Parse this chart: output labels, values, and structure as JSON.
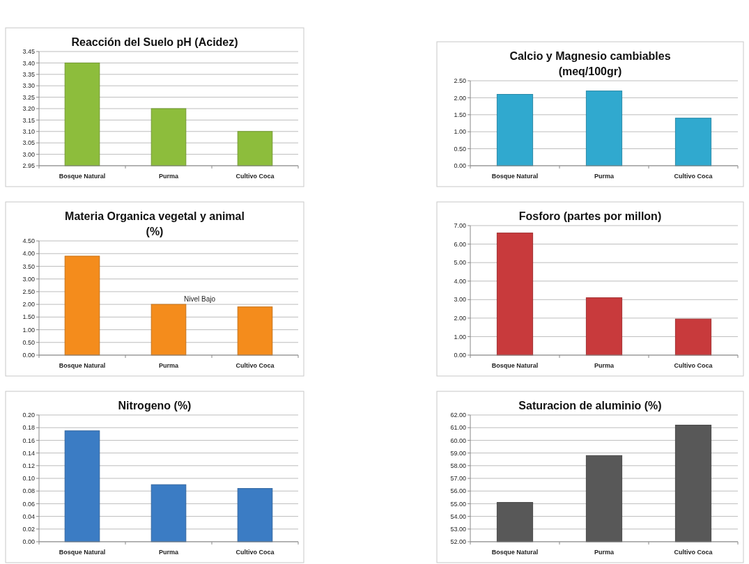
{
  "chart_data": [
    {
      "type": "bar",
      "title": "Reacción del Suelo pH (Acidez)",
      "categories": [
        "Bosque Natural",
        "Purma",
        "Cultivo Coca"
      ],
      "values": [
        3.4,
        3.2,
        3.1
      ],
      "color": "#8dbd3c",
      "ylim": [
        2.95,
        3.45
      ],
      "yticks": [
        {
          "value": 2.95,
          "label": "2.95"
        },
        {
          "value": 3.0,
          "label": "3.00"
        },
        {
          "value": 3.05,
          "label": "3.05"
        },
        {
          "value": 3.1,
          "label": "3.10"
        },
        {
          "value": 3.15,
          "label": "3.15"
        },
        {
          "value": 3.2,
          "label": "3.20"
        },
        {
          "value": 3.25,
          "label": "3.25"
        },
        {
          "value": 3.3,
          "label": "3.30"
        },
        {
          "value": 3.35,
          "label": "3.35"
        },
        {
          "value": 3.4,
          "label": "3.40"
        },
        {
          "value": 3.45,
          "label": "3.45"
        }
      ],
      "grid": "y"
    },
    {
      "type": "bar",
      "title": "Calcio y Magnesio cambiables (meq/100gr)",
      "categories": [
        "Bosque Natural",
        "Purma",
        "Cultivo Coca"
      ],
      "values": [
        2.1,
        2.2,
        1.4
      ],
      "color": "#30a9cf",
      "ylim": [
        0,
        2.5
      ],
      "yticks": [
        {
          "value": 0,
          "label": "0.00"
        },
        {
          "value": 0.5,
          "label": "0.50"
        },
        {
          "value": 1,
          "label": "1.00"
        },
        {
          "value": 1.5,
          "label": "1.50"
        },
        {
          "value": 2,
          "label": "2.00"
        },
        {
          "value": 2.5,
          "label": "2.50"
        }
      ],
      "grid": "y"
    },
    {
      "type": "bar",
      "title": "Materia Organica vegetal y animal (%)",
      "categories": [
        "Bosque Natural",
        "Purma",
        "Cultivo Coca"
      ],
      "values": [
        3.9,
        2.0,
        1.9
      ],
      "color": "#f48c1c",
      "ylim": [
        0,
        4.5
      ],
      "yticks": [
        {
          "value": 0,
          "label": "0.00"
        },
        {
          "value": 0.5,
          "label": "0.50"
        },
        {
          "value": 1,
          "label": "1.00"
        },
        {
          "value": 1.5,
          "label": "1.50"
        },
        {
          "value": 2,
          "label": "2.00"
        },
        {
          "value": 2.5,
          "label": "2.50"
        },
        {
          "value": 3,
          "label": "3.00"
        },
        {
          "value": 3.5,
          "label": "3.50"
        },
        {
          "value": 4,
          "label": "4.00"
        },
        {
          "value": 4.5,
          "label": "4.50"
        }
      ],
      "grid": "y",
      "annotations": [
        "Nivel Bajo"
      ]
    },
    {
      "type": "bar",
      "title": "Fosforo (partes por millon)",
      "categories": [
        "Bosque Natural",
        "Purma",
        "Cultivo Coca"
      ],
      "values": [
        6.6,
        3.1,
        1.95
      ],
      "color": "#c83a3c",
      "ylim": [
        0,
        7
      ],
      "yticks": [
        {
          "value": 0,
          "label": "0.00"
        },
        {
          "value": 1,
          "label": "1.00"
        },
        {
          "value": 2,
          "label": "2.00"
        },
        {
          "value": 3,
          "label": "3.00"
        },
        {
          "value": 4,
          "label": "4.00"
        },
        {
          "value": 5,
          "label": "5.00"
        },
        {
          "value": 6,
          "label": "6.00"
        },
        {
          "value": 7,
          "label": "7.00"
        }
      ],
      "grid": "y"
    },
    {
      "type": "bar",
      "title": "Nitrogeno (%)",
      "categories": [
        "Bosque Natural",
        "Purma",
        "Cultivo Coca"
      ],
      "values": [
        0.175,
        0.09,
        0.084
      ],
      "color": "#3b7cc4",
      "ylim": [
        0,
        0.2
      ],
      "yticks": [
        {
          "value": 0,
          "label": "0.00"
        },
        {
          "value": 0.02,
          "label": "0.02"
        },
        {
          "value": 0.04,
          "label": "0.04"
        },
        {
          "value": 0.06,
          "label": "0.06"
        },
        {
          "value": 0.08,
          "label": "0.08"
        },
        {
          "value": 0.1,
          "label": "0.10"
        },
        {
          "value": 0.12,
          "label": "0.12"
        },
        {
          "value": 0.14,
          "label": "0.14"
        },
        {
          "value": 0.16,
          "label": "0.16"
        },
        {
          "value": 0.18,
          "label": "0.18"
        },
        {
          "value": 0.2,
          "label": "0.20"
        }
      ],
      "grid": "y"
    },
    {
      "type": "bar",
      "title": "Saturacion de aluminio (%)",
      "categories": [
        "Bosque Natural",
        "Purma",
        "Cultivo Coca"
      ],
      "values": [
        55.1,
        58.8,
        61.2
      ],
      "color": "#585858",
      "ylim": [
        52,
        62
      ],
      "yticks": [
        {
          "value": 52,
          "label": "52.00"
        },
        {
          "value": 53,
          "label": "53.00"
        },
        {
          "value": 54,
          "label": "54.00"
        },
        {
          "value": 55,
          "label": "55.00"
        },
        {
          "value": 56,
          "label": "56.00"
        },
        {
          "value": 57,
          "label": "57.00"
        },
        {
          "value": 58,
          "label": "58.00"
        },
        {
          "value": 59,
          "label": "59.00"
        },
        {
          "value": 60,
          "label": "60.00"
        },
        {
          "value": 61,
          "label": "61.00"
        },
        {
          "value": 62,
          "label": "62.00"
        }
      ],
      "grid": "y"
    }
  ]
}
